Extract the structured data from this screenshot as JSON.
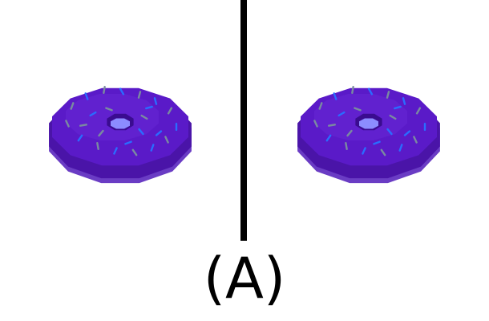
{
  "caption": "(A)",
  "colors": {
    "background": "#ffffff",
    "divider": "#000000",
    "frosting_top": "#5a1ac8",
    "frosting_side": "#4a14a8",
    "dough_side": "#6a3cc4",
    "hole_inner": "#8c8cff",
    "sprinkle_blue": "#2a6cff",
    "sprinkle_grey": "#7a8aa0"
  },
  "panels": [
    {
      "name": "left-donut",
      "object": "donut-icon"
    },
    {
      "name": "right-donut",
      "object": "donut-icon"
    }
  ]
}
